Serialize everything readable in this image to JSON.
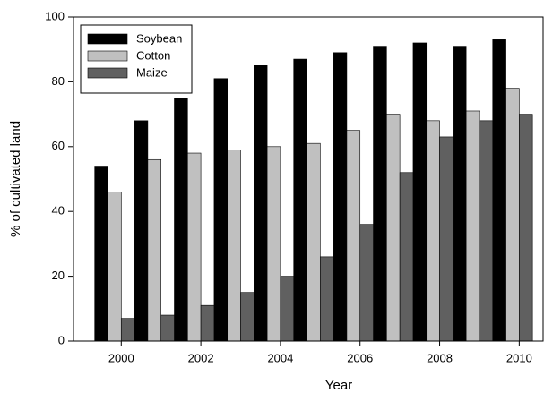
{
  "chart_data": {
    "type": "grouped-bar",
    "x_label": "Year",
    "y_label": "% of cultivated land",
    "x": [
      2000,
      2001,
      2002,
      2003,
      2004,
      2005,
      2006,
      2007,
      2008,
      2009,
      2010
    ],
    "xlim": [
      1998.8,
      2010.6
    ],
    "xticks": [
      2000,
      2002,
      2004,
      2006,
      2008,
      2010
    ],
    "ylim": [
      0,
      100
    ],
    "yticks": [
      0,
      20,
      40,
      60,
      80,
      100
    ],
    "legend": "upper left",
    "series": [
      {
        "name": "Soybean",
        "color": "#000000",
        "values": [
          54,
          68,
          75,
          81,
          85,
          87,
          89,
          91,
          92,
          91,
          93
        ]
      },
      {
        "name": "Cotton",
        "color": "#c0c0c0",
        "values": [
          46,
          56,
          58,
          59,
          60,
          61,
          65,
          70,
          68,
          71,
          78
        ]
      },
      {
        "name": "Maize",
        "color": "#606060",
        "values": [
          7,
          8,
          11,
          15,
          20,
          26,
          36,
          52,
          63,
          68,
          70
        ]
      }
    ]
  }
}
